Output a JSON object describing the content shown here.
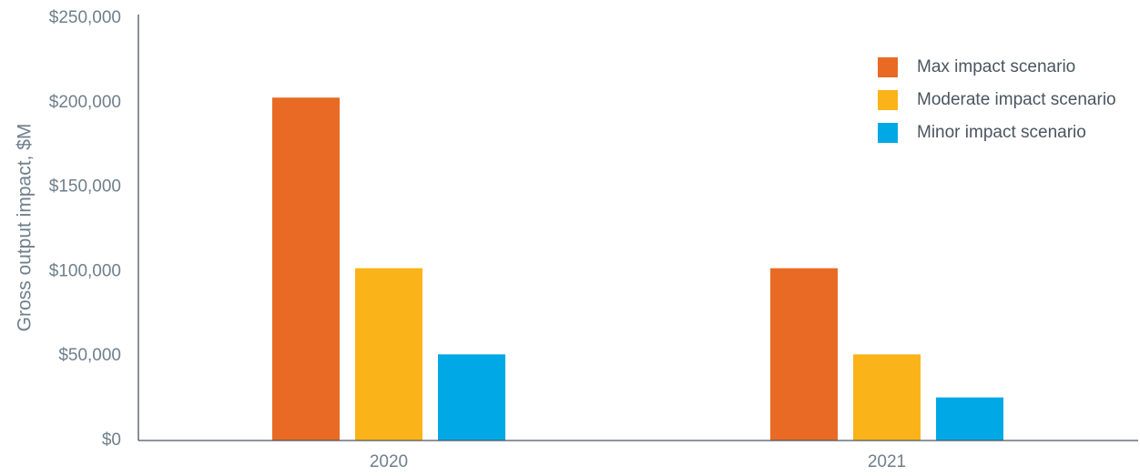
{
  "chart_data": {
    "type": "bar",
    "title": "",
    "xlabel": "",
    "ylabel": "Gross output impact, $M",
    "categories": [
      "2020",
      "2021"
    ],
    "series": [
      {
        "name": "Max impact scenario",
        "color": "#e86a24",
        "values": [
          203000,
          102000
        ]
      },
      {
        "name": "Moderate impact scenario",
        "color": "#fbb31a",
        "values": [
          102000,
          51000
        ]
      },
      {
        "name": "Minor impact scenario",
        "color": "#00a9e6",
        "values": [
          51000,
          25500
        ]
      }
    ],
    "ylim": [
      0,
      250000
    ],
    "yticks": [
      0,
      50000,
      100000,
      150000,
      200000,
      250000
    ],
    "ytick_labels": [
      "$0",
      "$50,000",
      "$100,000",
      "$150,000",
      "$200,000",
      "$250,000"
    ],
    "grid": false,
    "legend": "top-right",
    "axis_color": "#4a5560"
  }
}
